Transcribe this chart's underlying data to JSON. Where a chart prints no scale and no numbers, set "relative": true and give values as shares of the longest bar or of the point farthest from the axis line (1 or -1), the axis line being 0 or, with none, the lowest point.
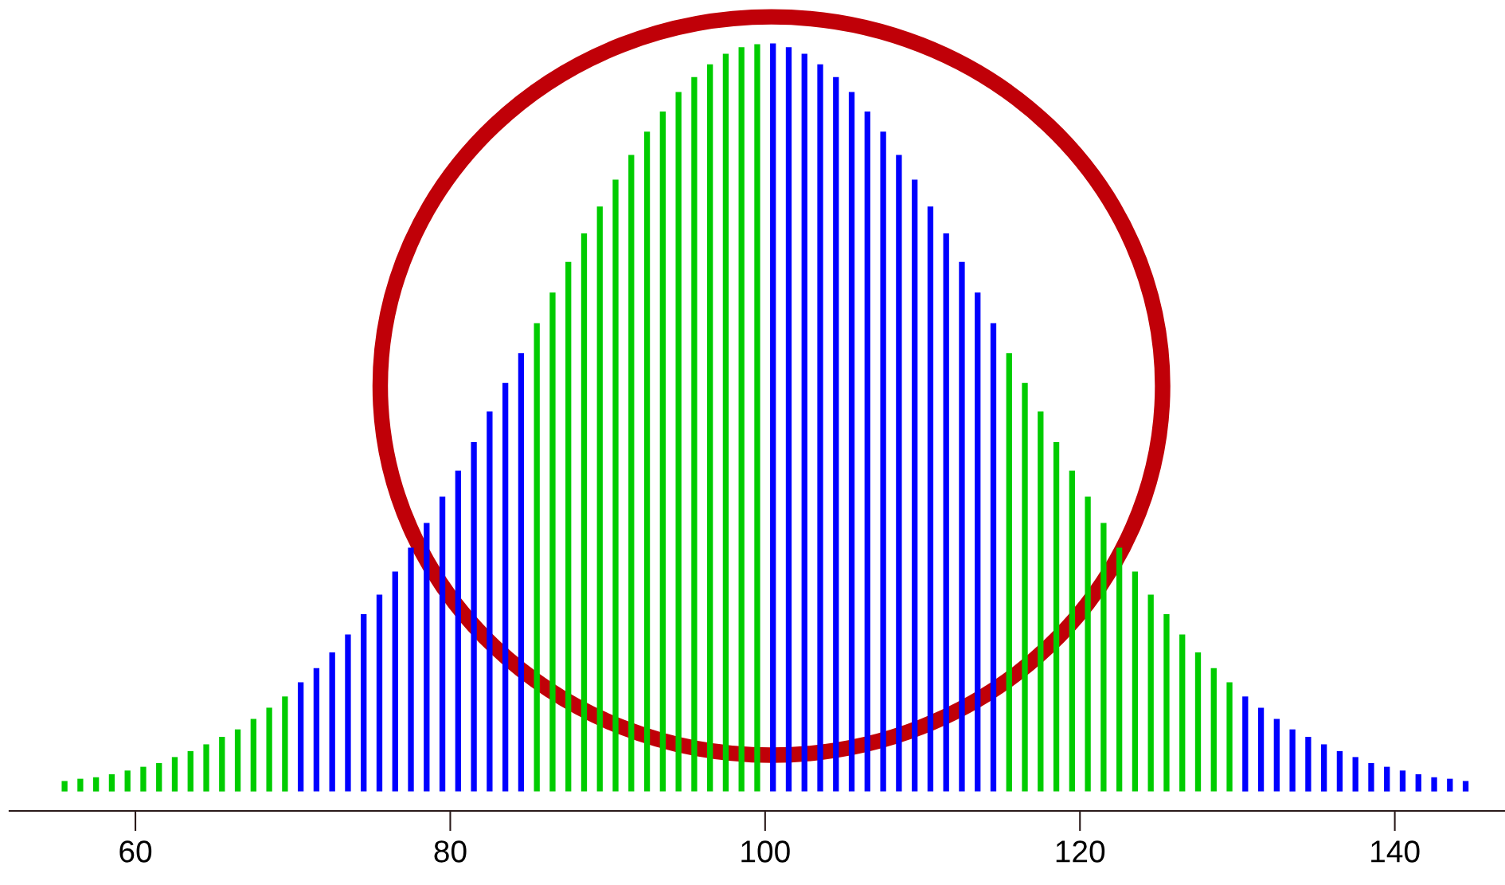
{
  "chart_data": {
    "type": "bar",
    "relative": true,
    "x": [
      55.5,
      56.5,
      57.5,
      58.5,
      59.5,
      60.5,
      61.5,
      62.5,
      63.5,
      64.5,
      65.5,
      66.5,
      67.5,
      68.5,
      69.5,
      70.5,
      71.5,
      72.5,
      73.5,
      74.5,
      75.5,
      76.5,
      77.5,
      78.5,
      79.5,
      80.5,
      81.5,
      82.5,
      83.5,
      84.5,
      85.5,
      86.5,
      87.5,
      88.5,
      89.5,
      90.5,
      91.5,
      92.5,
      93.5,
      94.5,
      95.5,
      96.5,
      97.5,
      98.5,
      99.5,
      100.5,
      101.5,
      102.5,
      103.5,
      104.5,
      105.5,
      106.5,
      107.5,
      108.5,
      109.5,
      110.5,
      111.5,
      112.5,
      113.5,
      114.5,
      115.5,
      116.5,
      117.5,
      118.5,
      119.5,
      120.5,
      121.5,
      122.5,
      123.5,
      124.5,
      125.5,
      126.5,
      127.5,
      128.5,
      129.5,
      130.5,
      131.5,
      132.5,
      133.5,
      134.5,
      135.5,
      136.5,
      137.5,
      138.5,
      139.5,
      140.5,
      141.5,
      142.5,
      143.5,
      144.5
    ],
    "values": [
      0.014,
      0.017,
      0.019,
      0.023,
      0.028,
      0.033,
      0.038,
      0.046,
      0.054,
      0.063,
      0.073,
      0.083,
      0.097,
      0.112,
      0.127,
      0.146,
      0.165,
      0.186,
      0.21,
      0.237,
      0.263,
      0.294,
      0.326,
      0.359,
      0.394,
      0.429,
      0.467,
      0.508,
      0.546,
      0.586,
      0.626,
      0.667,
      0.708,
      0.746,
      0.782,
      0.818,
      0.851,
      0.882,
      0.909,
      0.935,
      0.955,
      0.972,
      0.986,
      0.995,
      0.999,
      1.0,
      0.995,
      0.986,
      0.972,
      0.955,
      0.935,
      0.909,
      0.882,
      0.851,
      0.818,
      0.782,
      0.746,
      0.708,
      0.667,
      0.626,
      0.586,
      0.546,
      0.508,
      0.467,
      0.429,
      0.394,
      0.359,
      0.326,
      0.294,
      0.263,
      0.237,
      0.21,
      0.186,
      0.165,
      0.146,
      0.127,
      0.112,
      0.097,
      0.083,
      0.073,
      0.063,
      0.054,
      0.046,
      0.038,
      0.033,
      0.028,
      0.023,
      0.019,
      0.017,
      0.014
    ],
    "colors": [
      "#00cc00",
      "#00cc00",
      "#00cc00",
      "#00cc00",
      "#00cc00",
      "#00cc00",
      "#00cc00",
      "#00cc00",
      "#00cc00",
      "#00cc00",
      "#00cc00",
      "#00cc00",
      "#00cc00",
      "#00cc00",
      "#00cc00",
      "#0000ff",
      "#0000ff",
      "#0000ff",
      "#0000ff",
      "#0000ff",
      "#0000ff",
      "#0000ff",
      "#0000ff",
      "#0000ff",
      "#0000ff",
      "#0000ff",
      "#0000ff",
      "#0000ff",
      "#0000ff",
      "#0000ff",
      "#00cc00",
      "#00cc00",
      "#00cc00",
      "#00cc00",
      "#00cc00",
      "#00cc00",
      "#00cc00",
      "#00cc00",
      "#00cc00",
      "#00cc00",
      "#00cc00",
      "#00cc00",
      "#00cc00",
      "#00cc00",
      "#00cc00",
      "#0000ff",
      "#0000ff",
      "#0000ff",
      "#0000ff",
      "#0000ff",
      "#0000ff",
      "#0000ff",
      "#0000ff",
      "#0000ff",
      "#0000ff",
      "#0000ff",
      "#0000ff",
      "#0000ff",
      "#0000ff",
      "#0000ff",
      "#00cc00",
      "#00cc00",
      "#00cc00",
      "#00cc00",
      "#00cc00",
      "#00cc00",
      "#00cc00",
      "#00cc00",
      "#00cc00",
      "#00cc00",
      "#00cc00",
      "#00cc00",
      "#00cc00",
      "#00cc00",
      "#00cc00",
      "#0000ff",
      "#0000ff",
      "#0000ff",
      "#0000ff",
      "#0000ff",
      "#0000ff",
      "#0000ff",
      "#0000ff",
      "#0000ff",
      "#0000ff",
      "#0000ff",
      "#0000ff",
      "#0000ff",
      "#0000ff",
      "#0000ff"
    ],
    "xlim": [
      52,
      147
    ],
    "xticks": [
      60,
      80,
      100,
      120,
      140
    ],
    "tick_labels": "x",
    "grid": false,
    "legend": false
  }
}
